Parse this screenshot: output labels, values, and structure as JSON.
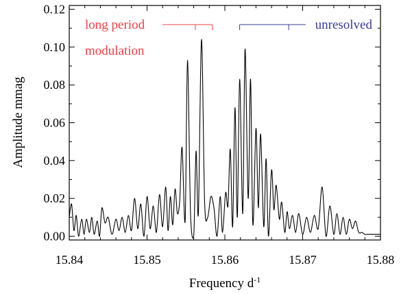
{
  "chart_data": {
    "type": "line",
    "title": "",
    "xlabel": "Frequency d",
    "xlabel_superscript": "-1",
    "ylabel": "Amplitude mmag",
    "xlim": [
      15.84,
      15.88
    ],
    "ylim": [
      -0.002,
      0.122
    ],
    "xticks": [
      "15.84",
      "15.85",
      "15.86",
      "15.87",
      "15.88"
    ],
    "yticks": [
      "0.00",
      "0.02",
      "0.04",
      "0.06",
      "0.08",
      "0.10",
      "0.12"
    ],
    "annotations": [
      {
        "text": "long period",
        "color": "#e8404a",
        "marker_x": [
          15.8584,
          15.8562,
          15.8584
        ]
      },
      {
        "text": "modulation",
        "color": "#e8404a"
      },
      {
        "text": "unresolved",
        "color": "#3a3a96",
        "marker_x": [
          15.8619,
          15.8682,
          15.8682
        ]
      }
    ],
    "series": [
      {
        "color": "#000000",
        "x": [
          15.84,
          15.8403,
          15.8406,
          15.8409,
          15.8412,
          15.8416,
          15.8419,
          15.8422,
          15.8426,
          15.8429,
          15.8432,
          15.8436,
          15.8439,
          15.8442,
          15.8446,
          15.845,
          15.8455,
          15.846,
          15.8464,
          15.8468,
          15.8472,
          15.8476,
          15.848,
          15.8484,
          15.8488,
          15.8492,
          15.8496,
          15.85,
          15.8504,
          15.8508,
          15.8512,
          15.8516,
          15.852,
          15.8524,
          15.8527,
          15.853,
          15.8533,
          15.8536,
          15.8539,
          15.8542,
          15.8545,
          15.8549,
          15.8552,
          15.8556,
          15.856,
          15.8563,
          15.8566,
          15.857,
          15.8574,
          15.8578,
          15.8582,
          15.8586,
          15.859,
          15.8594,
          15.8597,
          15.8601,
          15.8604,
          15.8607,
          15.861,
          15.8613,
          15.8616,
          15.8619,
          15.8623,
          15.8626,
          15.863,
          15.8633,
          15.8636,
          15.864,
          15.8643,
          15.8646,
          15.865,
          15.8653,
          15.8656,
          15.866,
          15.8663,
          15.8666,
          15.867,
          15.8673,
          15.8677,
          15.868,
          15.8683,
          15.8687,
          15.8691,
          15.8695,
          15.87,
          15.8705,
          15.871,
          15.8715,
          15.872,
          15.8725,
          15.873,
          15.8735,
          15.874,
          15.8744,
          15.8748,
          15.8752,
          15.8756,
          15.876,
          15.8764,
          15.8768,
          15.8772,
          15.8776,
          15.878,
          15.8784,
          15.8788,
          15.8792,
          15.8796,
          15.88
        ],
        "y": [
          0.01,
          0.017,
          0.003,
          0.011,
          0.0,
          0.009,
          0.001,
          0.009,
          0.002,
          0.01,
          0.001,
          0.008,
          0.0,
          0.015,
          0.007,
          0.01,
          0.001,
          0.009,
          0.003,
          0.01,
          0.002,
          0.011,
          0.003,
          0.02,
          0.004,
          0.017,
          0.0,
          0.021,
          0.004,
          0.016,
          0.002,
          0.022,
          0.005,
          0.026,
          0.003,
          0.021,
          0.006,
          0.025,
          0.012,
          0.019,
          0.047,
          0.008,
          0.093,
          0.01,
          0.0,
          0.045,
          0.012,
          0.104,
          0.018,
          0.01,
          0.021,
          0.015,
          0.0,
          0.021,
          0.002,
          0.023,
          0.016,
          0.046,
          0.005,
          0.068,
          0.01,
          0.083,
          0.012,
          0.099,
          0.02,
          0.083,
          0.006,
          0.057,
          0.015,
          0.054,
          0.005,
          0.041,
          0.0,
          0.035,
          0.014,
          0.027,
          0.009,
          0.018,
          0.002,
          0.013,
          0.004,
          0.011,
          0.002,
          0.012,
          0.001,
          0.01,
          0.002,
          0.011,
          0.004,
          0.026,
          0.0,
          0.016,
          0.001,
          0.012,
          0.001,
          0.01,
          0.001,
          0.009,
          0.004,
          0.008,
          0.002,
          0.002,
          0.001,
          0.001,
          0.001,
          0.001,
          0.001,
          0.001
        ]
      }
    ],
    "grid": false,
    "legend": "none"
  }
}
